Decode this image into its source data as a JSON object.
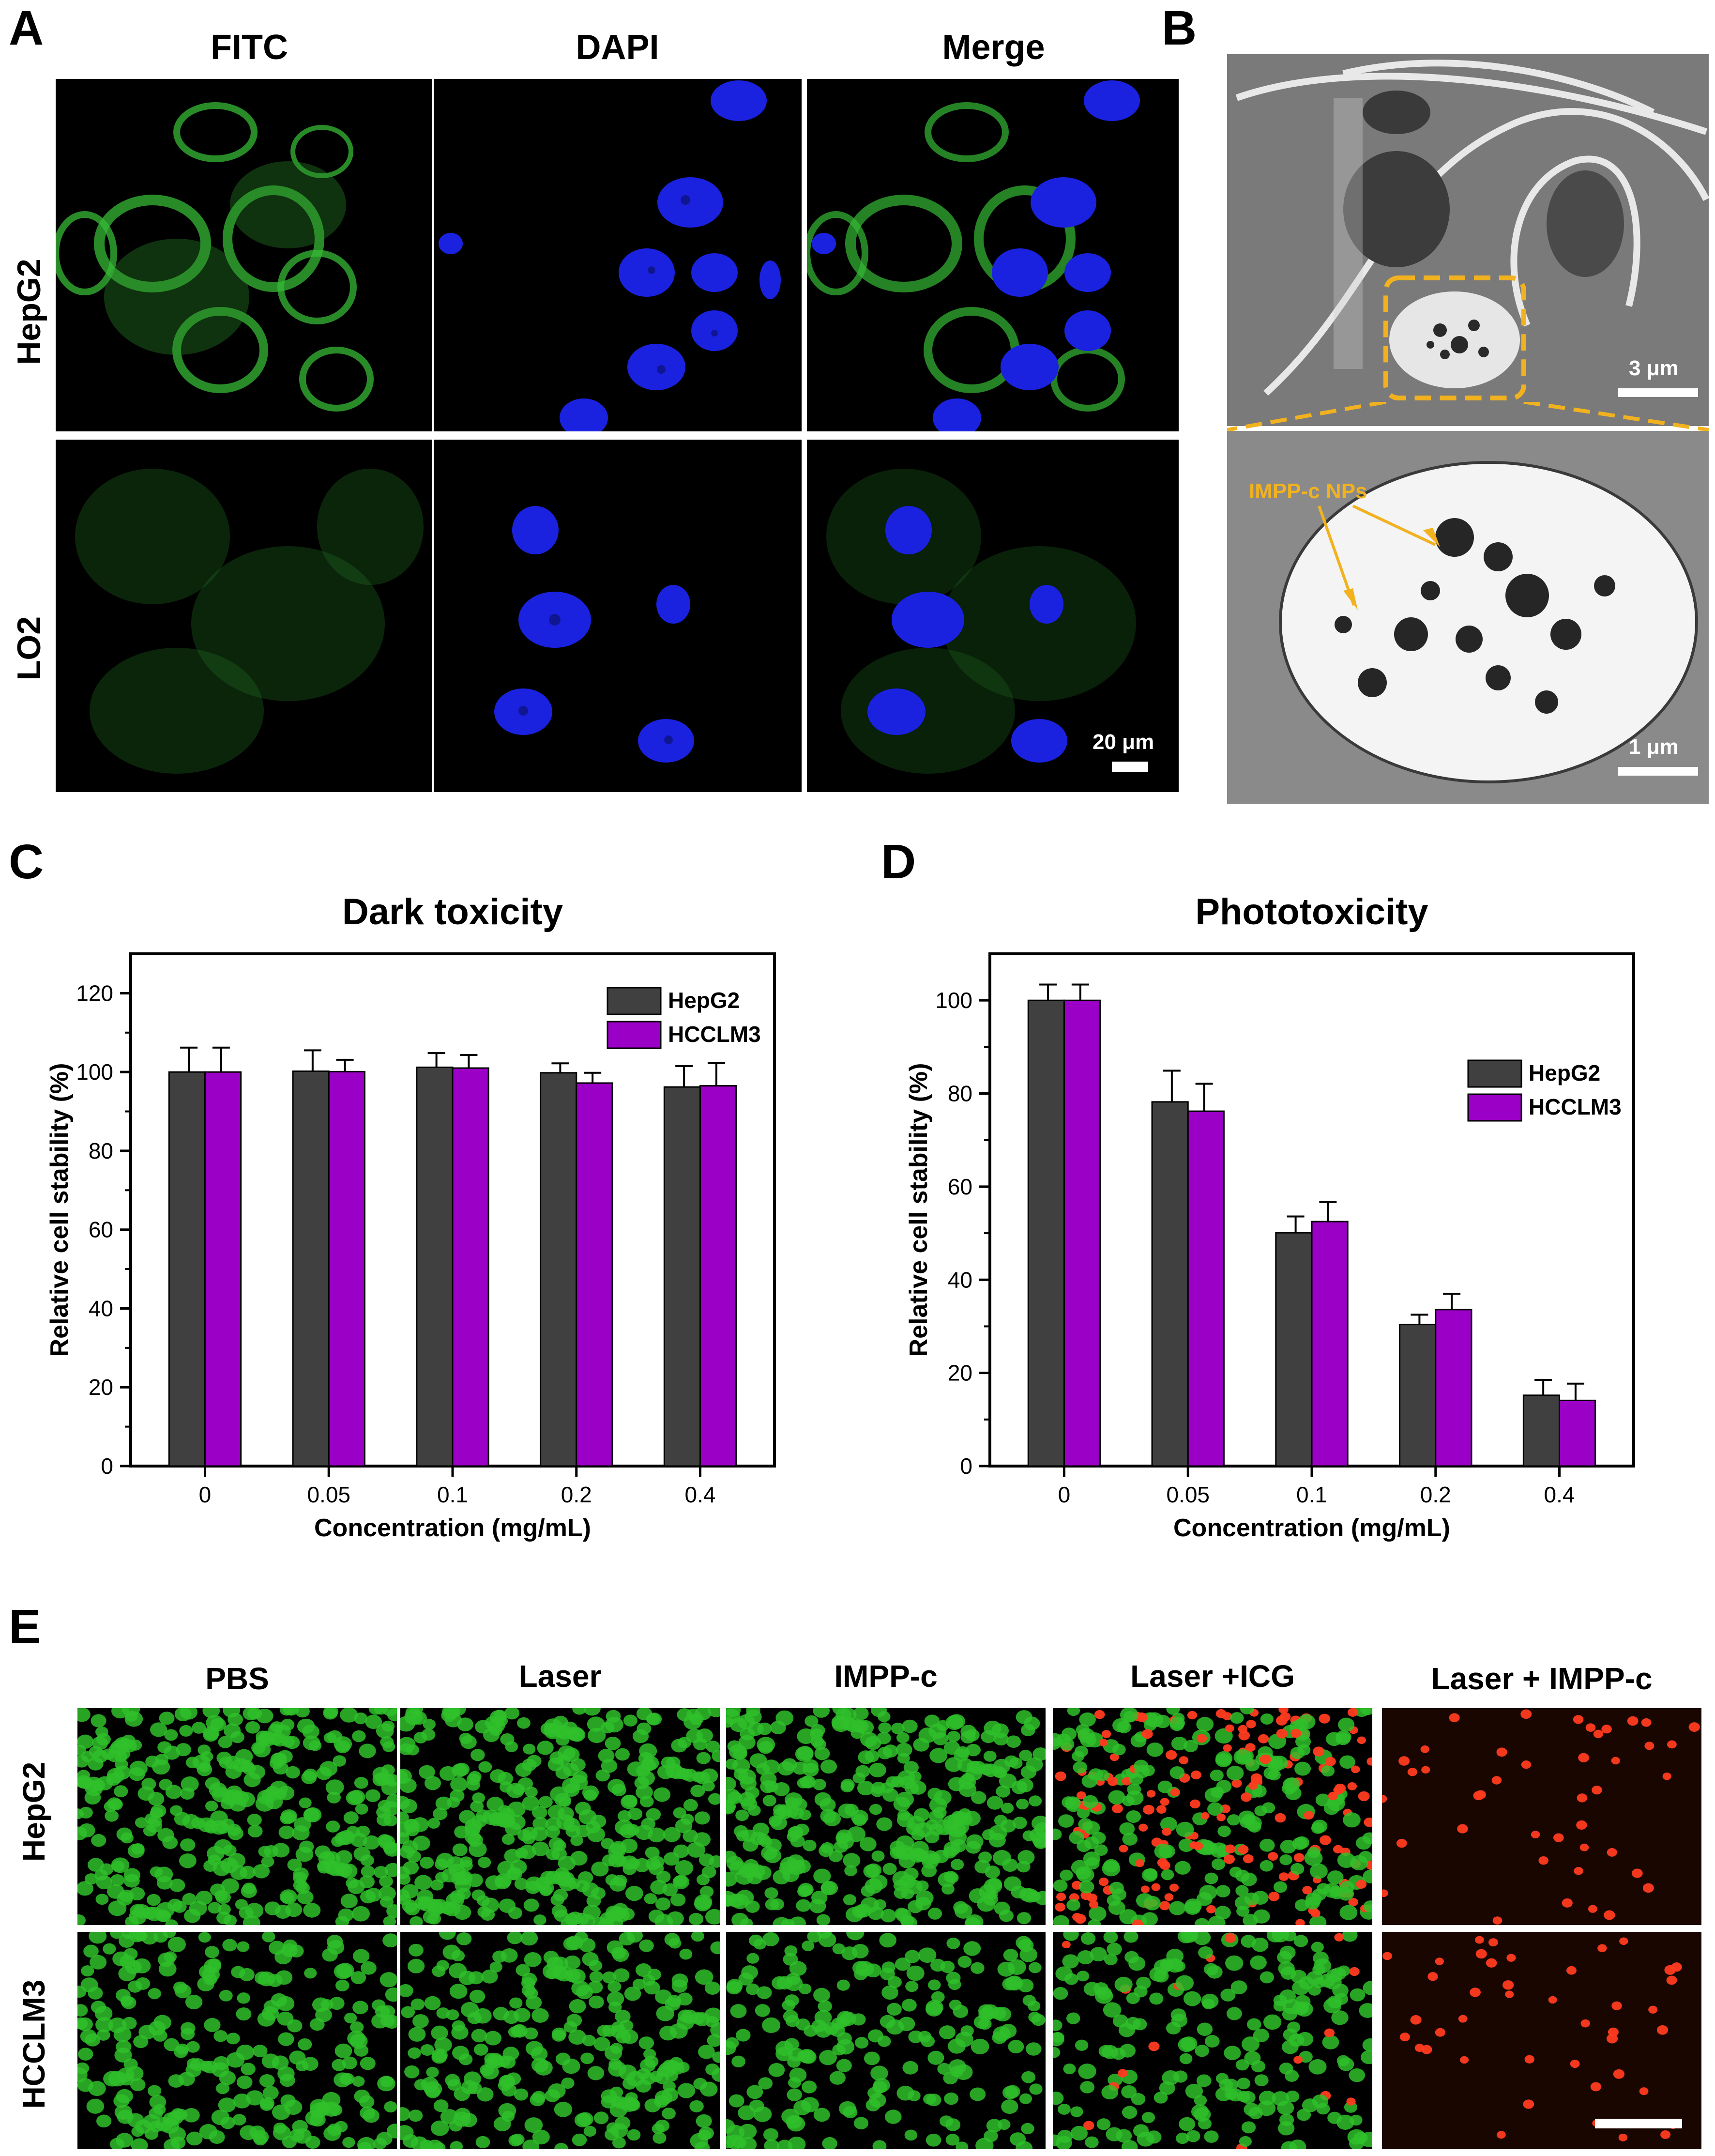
{
  "panels": {
    "A": {
      "letter": "A",
      "columns": [
        "FITC",
        "DAPI",
        "Merge"
      ],
      "rows": [
        "HepG2",
        "LO2"
      ],
      "scale": "20 μm"
    },
    "B": {
      "letter": "B",
      "scale_top": "3 μm",
      "scale_bottom": "1 μm",
      "annotation": "IMPP-c NPs"
    },
    "C": {
      "letter": "C"
    },
    "D": {
      "letter": "D"
    },
    "E": {
      "letter": "E",
      "columns": [
        "PBS",
        "Laser",
        "IMPP-c",
        "Laser +ICG",
        "Laser + IMPP-c"
      ],
      "rows": [
        "HepG2",
        "HCCLM3"
      ]
    }
  },
  "colors": {
    "hepg2_bar": "#404040",
    "hcclm3_bar": "#9b00c6",
    "live_stain": "#2fbf2a",
    "dead_stain": "#ff3b1f",
    "fitc": "#3fd23f",
    "dapi": "#1a22e0",
    "tem_arrow": "#f2b21f"
  },
  "chart_data": [
    {
      "type": "bar",
      "title": "Dark toxicity",
      "xlabel": "Concentration (mg/mL)",
      "ylabel": "Relative cell stability (%)",
      "categories": [
        "0",
        "0.05",
        "0.1",
        "0.2",
        "0.4"
      ],
      "ylim": [
        0,
        130
      ],
      "yticks": [
        "0",
        "20",
        "40",
        "60",
        "80",
        "100",
        "120"
      ],
      "legend_position": "top-right",
      "series": [
        {
          "name": "HepG2",
          "values": [
            100,
            100.2,
            101.2,
            99.8,
            96.2
          ],
          "errors": [
            6.2,
            5.3,
            3.6,
            2.4,
            5.3
          ]
        },
        {
          "name": "HCCLM3",
          "values": [
            100,
            100.1,
            101,
            97.2,
            96.5
          ],
          "errors": [
            6.2,
            3.0,
            3.3,
            2.6,
            5.8
          ]
        }
      ]
    },
    {
      "type": "bar",
      "title": "Phototoxicity",
      "xlabel": "Concentration (mg/mL)",
      "ylabel": "Relative cell stability (%)",
      "categories": [
        "0",
        "0.05",
        "0.1",
        "0.2",
        "0.4"
      ],
      "ylim": [
        0,
        110
      ],
      "yticks": [
        "0",
        "20",
        "40",
        "60",
        "80",
        "100"
      ],
      "legend_position": "right",
      "series": [
        {
          "name": "HepG2",
          "values": [
            100,
            78.2,
            50.1,
            30.4,
            15.2
          ],
          "errors": [
            3.4,
            6.7,
            3.5,
            2.1,
            3.3
          ]
        },
        {
          "name": "HCCLM3",
          "values": [
            100,
            76.2,
            52.5,
            33.6,
            14.1
          ],
          "errors": [
            3.4,
            5.9,
            4.2,
            3.4,
            3.6
          ]
        }
      ]
    }
  ]
}
